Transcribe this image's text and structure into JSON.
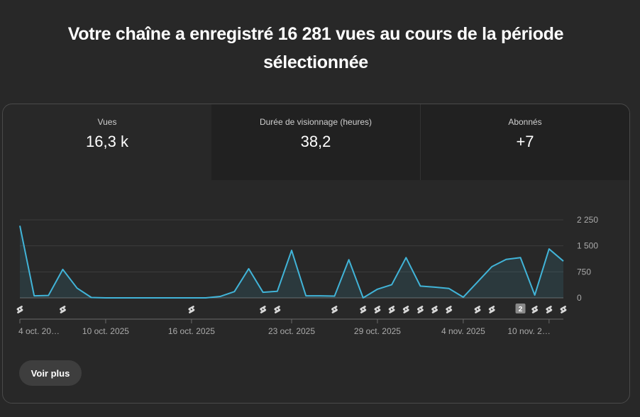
{
  "headline": "Votre chaîne a enregistré 16 281 vues au cours de la période sélectionnée",
  "tabs": [
    {
      "label": "Vues",
      "value": "16,3 k"
    },
    {
      "label": "Durée de visionnage (heures)",
      "value": "38,2"
    },
    {
      "label": "Abonnés",
      "value": "+7"
    }
  ],
  "see_more_label": "Voir plus",
  "colors": {
    "line": "#41b4d8",
    "background": "#282828"
  },
  "chart_data": {
    "type": "line",
    "series": [
      {
        "values": [
          2080,
          60,
          70,
          820,
          280,
          10,
          0,
          0,
          0,
          0,
          0,
          0,
          0,
          0,
          40,
          180,
          840,
          160,
          190,
          1370,
          60,
          60,
          50,
          1100,
          0,
          250,
          380,
          1160,
          340,
          310,
          270,
          20,
          460,
          900,
          1110,
          1160,
          80,
          1410,
          1060
        ]
      }
    ],
    "ylim": [
      0,
      2250
    ],
    "y_ticks": [
      "2 250",
      "1 500",
      "750",
      "0"
    ],
    "x_tick_labels": [
      "4 oct. 20…",
      "10 oct. 2025",
      "16 oct. 2025",
      "23 oct. 2025",
      "29 oct. 2025",
      "4 nov. 2025",
      "10 nov. 2…"
    ],
    "x_tick_indices": [
      0,
      6,
      12,
      19,
      25,
      31,
      37
    ],
    "shorts_marker_indices": [
      0,
      3,
      12,
      17,
      18,
      22,
      24,
      25,
      26,
      27,
      28,
      29,
      30,
      32,
      33,
      36,
      37,
      38
    ],
    "grouped_marker": {
      "index": 35,
      "count": "2"
    },
    "grid": true,
    "legend": "none"
  }
}
